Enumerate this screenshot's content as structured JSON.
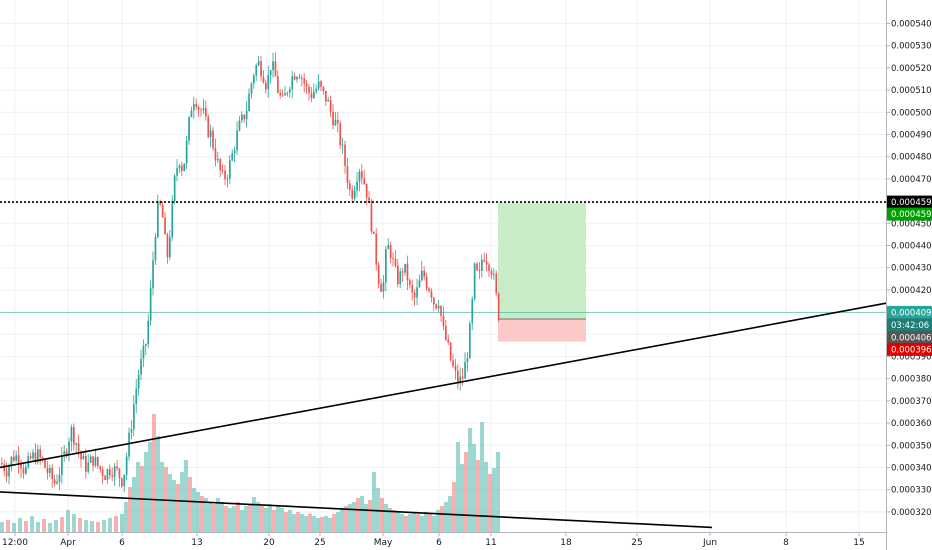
{
  "chart_data": {
    "type": "candlestick",
    "ylim": [
      0.000313,
      0.00055
    ],
    "y_ticks": [
      "0.00032000",
      "0.00033000",
      "0.00034000",
      "0.00035000",
      "0.00036000",
      "0.00037000",
      "0.00038000",
      "0.00039000",
      "0.00040000",
      "0.00041000",
      "0.00042000",
      "0.00043000",
      "0.00044000",
      "0.00045000",
      "0.00046000",
      "0.00047000",
      "0.00048000",
      "0.00049000",
      "0.00050000",
      "0.00051000",
      "0.00052000",
      "0.00053000",
      "0.00054000"
    ],
    "x_ticks": [
      "12:00",
      "Apr",
      "6",
      "13",
      "20",
      "25",
      "May",
      "6",
      "11",
      "18",
      "25",
      "Jun",
      "8",
      "15"
    ],
    "grid": true,
    "colors": {
      "up": "#26a69a",
      "down": "#ef5350",
      "profit_zone": "#c8ecc8",
      "loss_zone": "#fcc9c9",
      "line_tag": "#26a69a",
      "target_tag": "#00a000",
      "stop_tag": "#e00000",
      "level_tag": "#000000",
      "countdown_tag": "#1e7d74"
    },
    "price_tags": {
      "dotted_level": "0.00045955",
      "target": "0.00045927",
      "last_price": "0.00040987",
      "countdown": "03:42:06",
      "entry": "0.00040691",
      "stop": "0.00039672"
    },
    "position": {
      "type": "long",
      "entry": 0.00040691,
      "target": 0.00045927,
      "stop": 0.00039672,
      "start_date": "May 12",
      "end_date": "May 20"
    },
    "trendlines": [
      {
        "start_price": 0.00034,
        "end_price": 0.000414
      },
      {
        "start_price": 0.000329,
        "end_price": 0.000313
      }
    ],
    "price_path": [
      [
        0,
        0.000342
      ],
      [
        6,
        0.000339
      ],
      [
        12,
        0.000345
      ],
      [
        18,
        0.000345
      ],
      [
        24,
        0.000338
      ],
      [
        30,
        0.000344
      ],
      [
        36,
        0.000346
      ],
      [
        42,
        0.000342
      ],
      [
        48,
        0.000337
      ],
      [
        54,
        0.000333
      ],
      [
        60,
        0.00034
      ],
      [
        65,
        0.000348
      ],
      [
        70,
        0.000357
      ],
      [
        75,
        0.000352
      ],
      [
        80,
        0.000344
      ],
      [
        86,
        0.00034
      ],
      [
        92,
        0.000344
      ],
      [
        98,
        0.00034
      ],
      [
        104,
        0.000337
      ],
      [
        110,
        0.00034
      ],
      [
        116,
        0.000338
      ],
      [
        122,
        0.000334
      ],
      [
        126,
        0.000346
      ],
      [
        130,
        0.000358
      ],
      [
        134,
        0.000372
      ],
      [
        138,
        0.000383
      ],
      [
        142,
        0.00039
      ],
      [
        146,
        0.000398
      ],
      [
        150,
        0.00042
      ],
      [
        154,
        0.000445
      ],
      [
        158,
        0.00046
      ],
      [
        162,
        0.000452
      ],
      [
        166,
        0.000433
      ],
      [
        170,
        0.00045
      ],
      [
        174,
        0.00047
      ],
      [
        178,
        0.00048
      ],
      [
        182,
        0.000474
      ],
      [
        186,
        0.000486
      ],
      [
        190,
        0.000502
      ],
      [
        194,
        0.000508
      ],
      [
        198,
        0.000502
      ],
      [
        202,
        0.0005
      ],
      [
        206,
        0.000493
      ],
      [
        210,
        0.00049
      ],
      [
        214,
        0.000482
      ],
      [
        218,
        0.000475
      ],
      [
        222,
        0.00047
      ],
      [
        226,
        0.000472
      ],
      [
        230,
        0.000478
      ],
      [
        234,
        0.000486
      ],
      [
        238,
        0.000493
      ],
      [
        242,
        0.000497
      ],
      [
        246,
        0.000502
      ],
      [
        250,
        0.000512
      ],
      [
        254,
        0.00052
      ],
      [
        258,
        0.000522
      ],
      [
        262,
        0.000518
      ],
      [
        266,
        0.000512
      ],
      [
        270,
        0.000522
      ],
      [
        274,
        0.000517
      ],
      [
        278,
        0.000508
      ],
      [
        282,
        0.000504
      ],
      [
        286,
        0.00051
      ],
      [
        290,
        0.000515
      ],
      [
        294,
        0.000518
      ],
      [
        298,
        0.000519
      ],
      [
        302,
        0.000515
      ],
      [
        306,
        0.00051
      ],
      [
        310,
        0.000508
      ],
      [
        314,
        0.00051
      ],
      [
        318,
        0.000512
      ],
      [
        322,
        0.000508
      ],
      [
        326,
        0.000506
      ],
      [
        330,
        0.0005
      ],
      [
        334,
        0.000496
      ],
      [
        338,
        0.00049
      ],
      [
        342,
        0.000482
      ],
      [
        346,
        0.000472
      ],
      [
        350,
        0.000462
      ],
      [
        354,
        0.000468
      ],
      [
        358,
        0.000476
      ],
      [
        362,
        0.000471
      ],
      [
        366,
        0.000464
      ],
      [
        370,
        0.000452
      ],
      [
        374,
        0.000438
      ],
      [
        378,
        0.000425
      ],
      [
        382,
        0.00042
      ],
      [
        386,
        0.00044
      ],
      [
        390,
        0.000437
      ],
      [
        394,
        0.000428
      ],
      [
        398,
        0.000424
      ],
      [
        402,
        0.00043
      ],
      [
        406,
        0.000427
      ],
      [
        410,
        0.000418
      ],
      [
        414,
        0.000416
      ],
      [
        418,
        0.000422
      ],
      [
        422,
        0.000428
      ],
      [
        426,
        0.000423
      ],
      [
        430,
        0.00042
      ],
      [
        434,
        0.000413
      ],
      [
        438,
        0.000416
      ],
      [
        442,
        0.000402
      ],
      [
        446,
        0.000396
      ],
      [
        450,
        0.000388
      ],
      [
        454,
        0.000382
      ],
      [
        458,
        0.000378
      ],
      [
        462,
        0.000381
      ],
      [
        466,
        0.00039
      ],
      [
        470,
        0.000405
      ],
      [
        474,
        0.00043
      ],
      [
        478,
        0.000424
      ],
      [
        482,
        0.000437
      ],
      [
        486,
        0.000434
      ],
      [
        490,
        0.000431
      ],
      [
        494,
        0.000422
      ],
      [
        497,
        0.00041
      ],
      [
        500,
        0.000407
      ]
    ],
    "volumes": [
      [
        0,
        10
      ],
      [
        6,
        12
      ],
      [
        12,
        9
      ],
      [
        18,
        14
      ],
      [
        24,
        11
      ],
      [
        30,
        16
      ],
      [
        36,
        10
      ],
      [
        42,
        13
      ],
      [
        48,
        9
      ],
      [
        54,
        12
      ],
      [
        60,
        15
      ],
      [
        66,
        22
      ],
      [
        72,
        18
      ],
      [
        78,
        14
      ],
      [
        84,
        12
      ],
      [
        90,
        11
      ],
      [
        96,
        10
      ],
      [
        102,
        12
      ],
      [
        108,
        14
      ],
      [
        114,
        16
      ],
      [
        120,
        18
      ],
      [
        124,
        30
      ],
      [
        128,
        45
      ],
      [
        132,
        55
      ],
      [
        136,
        70
      ],
      [
        140,
        66
      ],
      [
        144,
        80
      ],
      [
        148,
        90
      ],
      [
        152,
        118
      ],
      [
        156,
        96
      ],
      [
        160,
        70
      ],
      [
        164,
        65
      ],
      [
        168,
        58
      ],
      [
        172,
        52
      ],
      [
        176,
        48
      ],
      [
        180,
        60
      ],
      [
        184,
        72
      ],
      [
        188,
        55
      ],
      [
        192,
        44
      ],
      [
        196,
        40
      ],
      [
        200,
        36
      ],
      [
        204,
        34
      ],
      [
        208,
        30
      ],
      [
        212,
        28
      ],
      [
        216,
        34
      ],
      [
        220,
        30
      ],
      [
        224,
        26
      ],
      [
        228,
        24
      ],
      [
        232,
        26
      ],
      [
        236,
        30
      ],
      [
        240,
        22
      ],
      [
        244,
        26
      ],
      [
        248,
        28
      ],
      [
        252,
        35
      ],
      [
        256,
        30
      ],
      [
        260,
        26
      ],
      [
        264,
        24
      ],
      [
        268,
        28
      ],
      [
        272,
        22
      ],
      [
        276,
        26
      ],
      [
        280,
        24
      ],
      [
        284,
        20
      ],
      [
        288,
        22
      ],
      [
        292,
        18
      ],
      [
        296,
        20
      ],
      [
        300,
        18
      ],
      [
        304,
        16
      ],
      [
        308,
        18
      ],
      [
        312,
        16
      ],
      [
        316,
        14
      ],
      [
        320,
        15
      ],
      [
        324,
        16
      ],
      [
        328,
        14
      ],
      [
        332,
        18
      ],
      [
        336,
        20
      ],
      [
        340,
        24
      ],
      [
        344,
        26
      ],
      [
        348,
        28
      ],
      [
        352,
        30
      ],
      [
        356,
        34
      ],
      [
        360,
        36
      ],
      [
        364,
        28
      ],
      [
        368,
        32
      ],
      [
        372,
        60
      ],
      [
        376,
        44
      ],
      [
        380,
        34
      ],
      [
        384,
        28
      ],
      [
        388,
        24
      ],
      [
        392,
        22
      ],
      [
        396,
        20
      ],
      [
        400,
        18
      ],
      [
        404,
        16
      ],
      [
        408,
        18
      ],
      [
        412,
        20
      ],
      [
        416,
        18
      ],
      [
        420,
        16
      ],
      [
        424,
        20
      ],
      [
        428,
        18
      ],
      [
        432,
        16
      ],
      [
        436,
        22
      ],
      [
        440,
        26
      ],
      [
        444,
        30
      ],
      [
        448,
        36
      ],
      [
        452,
        50
      ],
      [
        456,
        90
      ],
      [
        460,
        68
      ],
      [
        464,
        80
      ],
      [
        468,
        104
      ],
      [
        472,
        88
      ],
      [
        476,
        72
      ],
      [
        480,
        110
      ],
      [
        484,
        70
      ],
      [
        488,
        58
      ],
      [
        492,
        64
      ],
      [
        496,
        80
      ]
    ]
  }
}
